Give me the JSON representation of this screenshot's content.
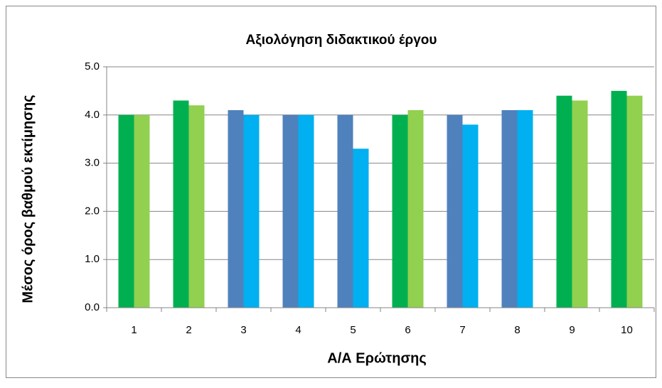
{
  "chart_data": {
    "type": "bar",
    "title": "Αξιολόγηση διδακτικού έργου",
    "x_label": "Α/Α Ερώτησης",
    "y_label": "Μέσος όρος βαθμού εκτίμησης",
    "categories": [
      "1",
      "2",
      "3",
      "4",
      "5",
      "6",
      "7",
      "8",
      "9",
      "10"
    ],
    "series": [
      {
        "colors": [
          "#00b050",
          "#00b050",
          "#4f81bd",
          "#4f81bd",
          "#4f81bd",
          "#00b050",
          "#4f81bd",
          "#4f81bd",
          "#00b050",
          "#00b050"
        ],
        "values": [
          4.0,
          4.3,
          4.1,
          4.0,
          4.0,
          4.0,
          4.0,
          4.1,
          4.4,
          4.5
        ]
      },
      {
        "colors": [
          "#92d050",
          "#92d050",
          "#00b0f0",
          "#00b0f0",
          "#00b0f0",
          "#92d050",
          "#00b0f0",
          "#00b0f0",
          "#92d050",
          "#92d050"
        ],
        "values": [
          4.0,
          4.2,
          4.0,
          4.0,
          3.3,
          4.1,
          3.8,
          4.1,
          4.3,
          4.4
        ]
      }
    ],
    "ylim": [
      0,
      5
    ],
    "yticks": [
      {
        "value": 0,
        "label": "0.0"
      },
      {
        "value": 1,
        "label": "1.0"
      },
      {
        "value": 2,
        "label": "2.0"
      },
      {
        "value": 3,
        "label": "3.0"
      },
      {
        "value": 4,
        "label": "4.0"
      },
      {
        "value": 5,
        "label": "5.0"
      }
    ],
    "grid": true
  }
}
